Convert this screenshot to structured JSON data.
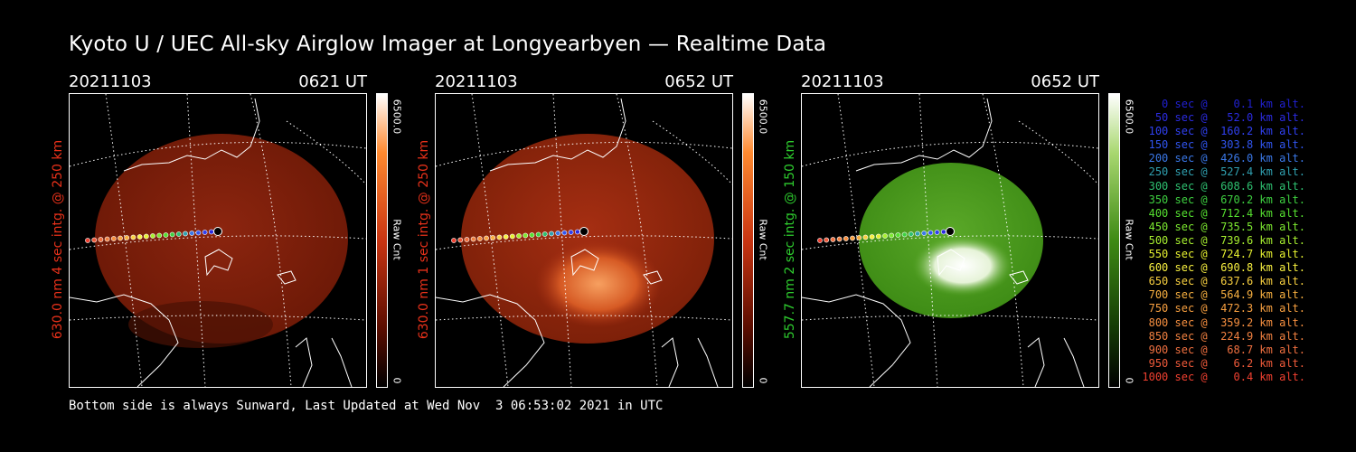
{
  "title": "Kyoto U / UEC All-sky Airglow Imager at Longyearbyen — Realtime Data",
  "panels": [
    {
      "date": "20211103",
      "time": "0621 UT",
      "side_label": "630.0 nm 4 sec intg. @ 250 km",
      "label_color": "#e8311a",
      "cbar_max": "6500.0",
      "cbar_min": "0",
      "cbar_unit": "Raw Cnt",
      "colormap": [
        "#ffffff",
        "#ff8a30",
        "#c83512",
        "#5a0d00",
        "#000000"
      ]
    },
    {
      "date": "20211103",
      "time": "0652 UT",
      "side_label": "630.0 nm 1 sec intg. @ 250 km",
      "label_color": "#e8311a",
      "cbar_max": "6500.0",
      "cbar_min": "0",
      "cbar_unit": "Raw Cnt",
      "colormap": [
        "#ffffff",
        "#ff8a30",
        "#c83512",
        "#5a0d00",
        "#000000"
      ]
    },
    {
      "date": "20211103",
      "time": "0652 UT",
      "side_label": "557.7 nm 2 sec intg. @ 150 km",
      "label_color": "#2ecc2e",
      "cbar_max": "6500.0",
      "cbar_min": "0",
      "cbar_unit": "Raw Cnt",
      "colormap": [
        "#ffffff",
        "#a9d870",
        "#3e8a14",
        "#143a05",
        "#000000"
      ]
    }
  ],
  "footer": "Bottom side is always Sunward, Last Updated at Wed Nov  3 06:53:02 2021 in UTC",
  "legend": [
    {
      "text": "   0 sec @    0.1 km alt.",
      "color": "#2020d0"
    },
    {
      "text": "  50 sec @   52.0 km alt.",
      "color": "#2b2be0"
    },
    {
      "text": " 100 sec @  160.2 km alt.",
      "color": "#3040f0"
    },
    {
      "text": " 150 sec @  303.8 km alt.",
      "color": "#3055f0"
    },
    {
      "text": " 200 sec @  426.0 km alt.",
      "color": "#3a78e8"
    },
    {
      "text": " 250 sec @  527.4 km alt.",
      "color": "#30a0b0"
    },
    {
      "text": " 300 sec @  608.6 km alt.",
      "color": "#2ec070"
    },
    {
      "text": " 350 sec @  670.2 km alt.",
      "color": "#3ed040"
    },
    {
      "text": " 400 sec @  712.4 km alt.",
      "color": "#55e030"
    },
    {
      "text": " 450 sec @  735.5 km alt.",
      "color": "#7ce830"
    },
    {
      "text": " 500 sec @  739.6 km alt.",
      "color": "#a8f030"
    },
    {
      "text": " 550 sec @  724.7 km alt.",
      "color": "#e6f030"
    },
    {
      "text": " 600 sec @  690.8 km alt.",
      "color": "#f8f040"
    },
    {
      "text": " 650 sec @  637.6 km alt.",
      "color": "#f8d040"
    },
    {
      "text": " 700 sec @  564.9 km alt.",
      "color": "#f8b040"
    },
    {
      "text": " 750 sec @  472.3 km alt.",
      "color": "#f8a040"
    },
    {
      "text": " 800 sec @  359.2 km alt.",
      "color": "#f89040"
    },
    {
      "text": " 850 sec @  224.9 km alt.",
      "color": "#f08040"
    },
    {
      "text": " 900 sec @   68.7 km alt.",
      "color": "#f07040"
    },
    {
      "text": " 950 sec @    6.2 km alt.",
      "color": "#f05a3a"
    },
    {
      "text": "1000 sec @    0.4 km alt.",
      "color": "#f04030"
    }
  ],
  "colors": {
    "background": "#000000",
    "panel_630": "#9e2a10",
    "panel_557": "#4c9a20"
  }
}
